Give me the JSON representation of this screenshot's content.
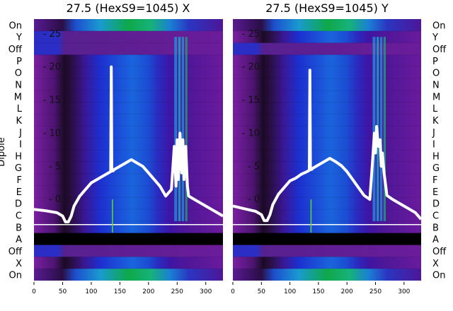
{
  "chart_data": [
    {
      "type": "heatmap",
      "title": "27.5 (HexS9=1045) X",
      "ylabel": "Dipole",
      "xlim": [
        0,
        330
      ],
      "x_ticks": [
        0,
        50,
        100,
        150,
        200,
        250,
        300
      ],
      "overlay_y_ticks": [
        0,
        5,
        10,
        15,
        20,
        25
      ],
      "overlay_ylim": [
        -5,
        27
      ]
    },
    {
      "type": "heatmap",
      "title": "27.5 (HexS9=1045) Y",
      "xlim": [
        0,
        330
      ],
      "x_ticks": [
        0,
        50,
        100,
        150,
        200,
        250,
        300
      ],
      "overlay_y_ticks": [
        0,
        5,
        10,
        15,
        20,
        25
      ],
      "overlay_ylim": [
        -5,
        27
      ]
    }
  ],
  "rows_top_to_bottom": [
    "On",
    "Y",
    "Off",
    "P",
    "O",
    "N",
    "M",
    "L",
    "K",
    "J",
    "I",
    "H",
    "G",
    "F",
    "E",
    "D",
    "C",
    "B",
    "A",
    "Off",
    "X",
    "On"
  ],
  "overlay_series": {
    "x": [
      0,
      20,
      40,
      50,
      55,
      60,
      65,
      70,
      80,
      90,
      100,
      110,
      120,
      130,
      134,
      135,
      136,
      138,
      140,
      150,
      160,
      170,
      180,
      190,
      200,
      210,
      220,
      230,
      240,
      245,
      248,
      250,
      252,
      255,
      258,
      260,
      262,
      265,
      268,
      270,
      280,
      290,
      300,
      310,
      320,
      330
    ],
    "y": [
      -1.5,
      -1.7,
      -2,
      -2.5,
      -3.4,
      -3.4,
      -2.5,
      -1,
      0.5,
      1.5,
      2.5,
      3,
      3.5,
      4,
      4.2,
      20,
      4.3,
      4.3,
      4.5,
      5,
      5.5,
      6,
      5.5,
      5,
      4,
      3,
      2,
      0.5,
      1.5,
      8,
      2,
      9,
      3,
      10,
      4,
      9,
      3,
      8,
      2,
      0.5,
      0,
      -0.5,
      -1,
      -1.5,
      -2,
      -2.5
    ]
  },
  "y_series": {
    "x": [
      0,
      20,
      40,
      50,
      55,
      60,
      65,
      70,
      80,
      90,
      100,
      110,
      120,
      130,
      134,
      135,
      136,
      138,
      140,
      150,
      160,
      170,
      180,
      190,
      200,
      210,
      220,
      230,
      240,
      245,
      248,
      250,
      252,
      255,
      258,
      260,
      262,
      265,
      268,
      270,
      280,
      290,
      300,
      310,
      320,
      330
    ],
    "y": [
      -1,
      -1.4,
      -1.8,
      -2.3,
      -3.2,
      -3.2,
      -2.3,
      -0.8,
      0.8,
      1.8,
      2.8,
      3.2,
      3.8,
      4.2,
      4.4,
      19.5,
      4.5,
      4.5,
      4.7,
      5.2,
      5.7,
      6.2,
      5.7,
      5.1,
      4.2,
      3,
      1.8,
      0.6,
      0,
      6,
      10,
      7,
      11,
      8,
      9,
      5,
      7,
      4,
      2,
      0.6,
      0,
      -0.5,
      -1,
      -1.5,
      -2,
      -3
    ]
  }
}
